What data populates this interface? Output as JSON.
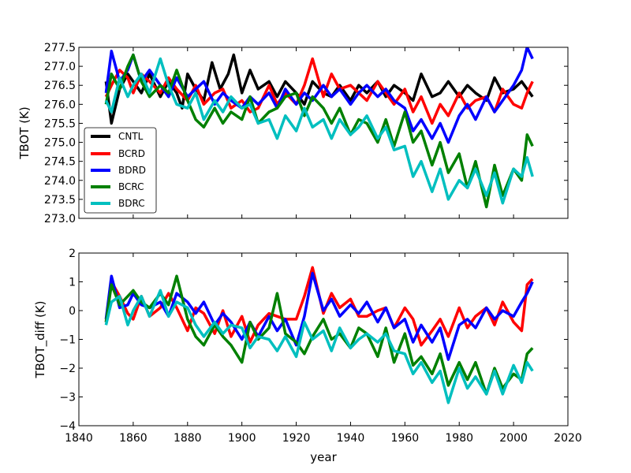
{
  "chart_data": [
    {
      "type": "line",
      "ylabel": "TBOT (K)",
      "xlabel": "",
      "xlim": [
        1840,
        2020
      ],
      "ylim": [
        273.0,
        277.5
      ],
      "xticks": [
        1840,
        1860,
        1880,
        1900,
        1920,
        1940,
        1960,
        1980,
        2000,
        2020
      ],
      "yticks": [
        273.0,
        273.5,
        274.0,
        274.5,
        275.0,
        275.5,
        276.0,
        276.5,
        277.0,
        277.5
      ],
      "ytick_labels": [
        "273.0",
        "273.5",
        "274.0",
        "274.5",
        "275.0",
        "275.5",
        "276.0",
        "276.5",
        "277.0",
        "277.5"
      ],
      "show_xtick_labels": false,
      "legend": {
        "location": "lower-left",
        "entries": [
          "CNTL",
          "BCRD",
          "BDRD",
          "BCRC",
          "BDRC"
        ]
      },
      "series": [
        {
          "name": "CNTL",
          "color": "#000000",
          "x": [
            1850,
            1852,
            1855,
            1858,
            1860,
            1863,
            1866,
            1870,
            1873,
            1876,
            1878,
            1880,
            1883,
            1886,
            1889,
            1892,
            1895,
            1897,
            1900,
            1903,
            1906,
            1910,
            1913,
            1916,
            1920,
            1923,
            1926,
            1930,
            1933,
            1936,
            1940,
            1943,
            1946,
            1950,
            1953,
            1956,
            1960,
            1963,
            1966,
            1970,
            1973,
            1976,
            1980,
            1983,
            1986,
            1990,
            1993,
            1996,
            2000,
            2003,
            2005,
            2007
          ],
          "y": [
            276.6,
            275.5,
            276.4,
            276.8,
            276.6,
            276.3,
            276.8,
            276.2,
            276.6,
            276.3,
            275.9,
            276.8,
            276.4,
            276.1,
            277.1,
            276.4,
            276.8,
            277.3,
            276.3,
            276.9,
            276.4,
            276.6,
            276.2,
            276.6,
            276.3,
            276.0,
            276.6,
            276.3,
            276.2,
            276.5,
            276.1,
            276.5,
            276.3,
            276.6,
            276.2,
            276.5,
            276.3,
            276.1,
            276.8,
            276.2,
            276.3,
            276.6,
            276.2,
            276.5,
            276.3,
            276.1,
            276.7,
            276.3,
            276.4,
            276.6,
            276.4,
            276.2
          ]
        },
        {
          "name": "BCRD",
          "color": "#ff0000",
          "x": [
            1850,
            1852,
            1855,
            1858,
            1860,
            1863,
            1866,
            1870,
            1873,
            1876,
            1880,
            1883,
            1886,
            1890,
            1893,
            1896,
            1900,
            1903,
            1906,
            1910,
            1913,
            1916,
            1920,
            1923,
            1926,
            1930,
            1933,
            1936,
            1940,
            1943,
            1946,
            1950,
            1953,
            1956,
            1960,
            1963,
            1966,
            1970,
            1973,
            1976,
            1980,
            1983,
            1986,
            1990,
            1993,
            1996,
            2000,
            2003,
            2005,
            2007
          ],
          "y": [
            276.2,
            276.5,
            276.9,
            276.7,
            276.3,
            276.8,
            276.6,
            276.3,
            276.7,
            276.4,
            276.1,
            276.5,
            276.0,
            276.3,
            276.4,
            275.9,
            276.1,
            275.8,
            275.9,
            276.5,
            276.0,
            276.3,
            276.0,
            276.5,
            277.2,
            276.2,
            276.8,
            276.4,
            276.5,
            276.3,
            276.1,
            276.6,
            276.3,
            276.0,
            276.4,
            275.8,
            276.2,
            275.5,
            276.0,
            275.7,
            276.3,
            275.9,
            276.1,
            276.2,
            275.8,
            276.4,
            276.0,
            275.9,
            276.3,
            276.6
          ]
        },
        {
          "name": "BDRD",
          "color": "#0000ff",
          "x": [
            1850,
            1852,
            1855,
            1858,
            1860,
            1863,
            1866,
            1870,
            1873,
            1876,
            1880,
            1883,
            1886,
            1890,
            1893,
            1896,
            1900,
            1903,
            1906,
            1910,
            1913,
            1916,
            1920,
            1923,
            1926,
            1930,
            1933,
            1936,
            1940,
            1943,
            1946,
            1950,
            1953,
            1956,
            1960,
            1963,
            1966,
            1970,
            1973,
            1976,
            1980,
            1983,
            1986,
            1990,
            1993,
            1996,
            2000,
            2003,
            2005,
            2007
          ],
          "y": [
            276.3,
            277.4,
            276.6,
            276.9,
            277.3,
            276.6,
            276.9,
            276.5,
            276.2,
            276.7,
            276.2,
            276.4,
            276.6,
            276.0,
            276.3,
            276.1,
            275.9,
            276.2,
            276.0,
            276.3,
            275.9,
            276.4,
            276.0,
            276.3,
            276.1,
            276.5,
            276.2,
            276.4,
            276.0,
            276.3,
            276.5,
            276.2,
            276.4,
            276.1,
            275.9,
            275.3,
            275.6,
            275.1,
            275.5,
            275.0,
            275.7,
            276.0,
            275.6,
            276.2,
            275.8,
            276.1,
            276.5,
            276.9,
            277.5,
            277.2
          ]
        },
        {
          "name": "BCRC",
          "color": "#008000",
          "x": [
            1850,
            1852,
            1855,
            1858,
            1860,
            1863,
            1866,
            1870,
            1873,
            1876,
            1880,
            1883,
            1886,
            1890,
            1893,
            1896,
            1900,
            1903,
            1906,
            1910,
            1913,
            1916,
            1920,
            1923,
            1926,
            1930,
            1933,
            1936,
            1940,
            1943,
            1946,
            1950,
            1953,
            1956,
            1960,
            1963,
            1966,
            1970,
            1973,
            1976,
            1980,
            1983,
            1986,
            1990,
            1993,
            1996,
            2000,
            2003,
            2005,
            2007
          ],
          "y": [
            276.0,
            276.8,
            276.4,
            277.0,
            277.3,
            276.6,
            276.2,
            276.5,
            276.3,
            276.9,
            276.1,
            275.6,
            275.4,
            275.9,
            275.5,
            275.8,
            275.6,
            276.2,
            275.5,
            275.8,
            275.9,
            276.2,
            276.3,
            275.7,
            276.2,
            275.9,
            275.5,
            275.9,
            275.2,
            275.6,
            275.5,
            275.0,
            275.6,
            274.9,
            275.8,
            275.0,
            275.3,
            274.4,
            275.0,
            274.2,
            274.7,
            273.8,
            274.5,
            273.3,
            274.4,
            273.6,
            274.3,
            274.0,
            275.2,
            274.9
          ]
        },
        {
          "name": "BDRC",
          "color": "#00bfbf",
          "x": [
            1850,
            1852,
            1855,
            1858,
            1860,
            1863,
            1866,
            1870,
            1873,
            1876,
            1880,
            1883,
            1886,
            1890,
            1893,
            1896,
            1900,
            1903,
            1906,
            1910,
            1913,
            1916,
            1920,
            1923,
            1926,
            1930,
            1933,
            1936,
            1940,
            1943,
            1946,
            1950,
            1953,
            1956,
            1960,
            1963,
            1966,
            1970,
            1973,
            1976,
            1980,
            1983,
            1986,
            1990,
            1993,
            1996,
            2000,
            2003,
            2005,
            2007
          ],
          "y": [
            276.1,
            275.8,
            276.7,
            276.2,
            276.5,
            276.8,
            276.3,
            277.2,
            276.5,
            276.0,
            275.9,
            276.3,
            275.6,
            276.1,
            275.8,
            276.2,
            275.9,
            276.0,
            275.5,
            275.6,
            275.1,
            275.7,
            275.3,
            275.9,
            275.4,
            275.6,
            275.1,
            275.6,
            275.2,
            275.4,
            275.7,
            275.1,
            275.4,
            274.8,
            274.9,
            274.1,
            274.5,
            273.7,
            274.3,
            273.5,
            274.0,
            273.8,
            274.3,
            273.6,
            274.2,
            273.4,
            274.3,
            274.1,
            274.6,
            274.1
          ]
        }
      ]
    },
    {
      "type": "line",
      "ylabel": "TBOT_diff (K)",
      "xlabel": "year",
      "xlim": [
        1840,
        2020
      ],
      "ylim": [
        -4,
        2
      ],
      "xticks": [
        1840,
        1860,
        1880,
        1900,
        1920,
        1940,
        1960,
        1980,
        2000,
        2020
      ],
      "xtick_labels": [
        "1840",
        "1860",
        "1880",
        "1900",
        "1920",
        "1940",
        "1960",
        "1980",
        "2000",
        "2020"
      ],
      "yticks": [
        -4,
        -3,
        -2,
        -1,
        0,
        1,
        2
      ],
      "ytick_labels": [
        "−4",
        "−3",
        "−2",
        "−1",
        "0",
        "1",
        "2"
      ],
      "show_xtick_labels": true,
      "series": [
        {
          "name": "BCRD",
          "color": "#ff0000",
          "x": [
            1850,
            1852,
            1855,
            1858,
            1860,
            1863,
            1866,
            1870,
            1873,
            1876,
            1880,
            1883,
            1886,
            1890,
            1893,
            1896,
            1900,
            1903,
            1906,
            1910,
            1913,
            1916,
            1920,
            1923,
            1926,
            1930,
            1933,
            1936,
            1940,
            1943,
            1946,
            1950,
            1953,
            1956,
            1960,
            1963,
            1966,
            1970,
            1973,
            1976,
            1980,
            1983,
            1986,
            1990,
            1993,
            1996,
            2000,
            2003,
            2005,
            2007
          ],
          "y": [
            -0.4,
            1.0,
            0.5,
            -0.1,
            -0.3,
            0.5,
            -0.2,
            0.1,
            0.6,
            0.1,
            -0.7,
            0.1,
            -0.1,
            -0.8,
            0.0,
            -0.9,
            -0.2,
            -1.1,
            -0.5,
            -0.1,
            -0.2,
            -0.3,
            -0.3,
            0.5,
            1.5,
            -0.1,
            0.6,
            0.1,
            0.4,
            -0.2,
            -0.2,
            0.0,
            0.1,
            -0.6,
            0.1,
            -0.3,
            -1.2,
            -0.7,
            -0.3,
            -0.9,
            0.1,
            -0.6,
            -0.2,
            0.1,
            -0.5,
            0.3,
            -0.4,
            -0.7,
            0.9,
            1.1
          ]
        },
        {
          "name": "BDRD",
          "color": "#0000ff",
          "x": [
            1850,
            1852,
            1855,
            1858,
            1860,
            1863,
            1866,
            1870,
            1873,
            1876,
            1880,
            1883,
            1886,
            1890,
            1893,
            1896,
            1900,
            1903,
            1906,
            1910,
            1913,
            1916,
            1920,
            1923,
            1926,
            1930,
            1933,
            1936,
            1940,
            1943,
            1946,
            1950,
            1953,
            1956,
            1960,
            1963,
            1966,
            1970,
            1973,
            1976,
            1980,
            1983,
            1986,
            1990,
            1993,
            1996,
            2000,
            2003,
            2005,
            2007
          ],
          "y": [
            -0.3,
            1.2,
            0.1,
            0.2,
            0.6,
            0.2,
            0.1,
            0.3,
            -0.2,
            0.6,
            0.3,
            -0.1,
            0.3,
            -0.5,
            -0.1,
            -0.4,
            -1.0,
            -0.4,
            -0.9,
            -0.2,
            -0.7,
            -0.3,
            -1.2,
            -0.2,
            1.3,
            0.0,
            0.4,
            -0.2,
            0.2,
            -0.1,
            0.3,
            -0.4,
            0.1,
            -0.6,
            -0.3,
            -1.1,
            -0.5,
            -1.1,
            -0.6,
            -1.7,
            -0.5,
            -0.3,
            -0.6,
            0.1,
            -0.3,
            0.0,
            -0.2,
            0.3,
            0.6,
            1.0
          ]
        },
        {
          "name": "BCRC",
          "color": "#008000",
          "x": [
            1850,
            1852,
            1855,
            1858,
            1860,
            1863,
            1866,
            1870,
            1873,
            1876,
            1880,
            1883,
            1886,
            1890,
            1893,
            1896,
            1900,
            1903,
            1906,
            1910,
            1913,
            1916,
            1920,
            1923,
            1926,
            1930,
            1933,
            1936,
            1940,
            1943,
            1946,
            1950,
            1953,
            1956,
            1960,
            1963,
            1966,
            1970,
            1973,
            1976,
            1980,
            1983,
            1986,
            1990,
            1993,
            1996,
            2000,
            2003,
            2005,
            2007
          ],
          "y": [
            -0.4,
            0.9,
            0.2,
            0.5,
            0.7,
            0.3,
            0.1,
            0.6,
            0.2,
            1.2,
            -0.3,
            -0.9,
            -1.2,
            -0.5,
            -0.9,
            -1.2,
            -1.8,
            -0.4,
            -1.0,
            -0.6,
            0.6,
            -0.8,
            -1.1,
            -1.5,
            -0.9,
            -0.3,
            -1.0,
            -0.8,
            -1.3,
            -0.6,
            -0.8,
            -1.6,
            -0.6,
            -1.8,
            -0.8,
            -1.9,
            -1.6,
            -2.2,
            -1.5,
            -2.6,
            -1.8,
            -2.4,
            -1.8,
            -2.9,
            -2.0,
            -2.7,
            -2.2,
            -2.4,
            -1.5,
            -1.3
          ]
        },
        {
          "name": "BDRC",
          "color": "#00bfbf",
          "x": [
            1850,
            1852,
            1855,
            1858,
            1860,
            1863,
            1866,
            1870,
            1873,
            1876,
            1880,
            1883,
            1886,
            1890,
            1893,
            1896,
            1900,
            1903,
            1906,
            1910,
            1913,
            1916,
            1920,
            1923,
            1926,
            1930,
            1933,
            1936,
            1940,
            1943,
            1946,
            1950,
            1953,
            1956,
            1960,
            1963,
            1966,
            1970,
            1973,
            1976,
            1980,
            1983,
            1986,
            1990,
            1993,
            1996,
            2000,
            2003,
            2005,
            2007
          ],
          "y": [
            -0.5,
            0.3,
            0.5,
            -0.5,
            0.0,
            0.5,
            -0.2,
            0.7,
            -0.2,
            0.3,
            0.1,
            -0.5,
            -0.9,
            -0.4,
            -0.8,
            -0.5,
            -0.6,
            -1.3,
            -0.9,
            -1.0,
            -1.4,
            -0.9,
            -1.6,
            -0.4,
            -1.0,
            -0.7,
            -1.4,
            -0.6,
            -1.3,
            -1.0,
            -0.8,
            -1.1,
            -0.8,
            -1.4,
            -1.5,
            -2.2,
            -1.8,
            -2.5,
            -2.1,
            -3.2,
            -2.0,
            -2.7,
            -2.3,
            -2.9,
            -2.1,
            -2.9,
            -1.9,
            -2.5,
            -1.8,
            -2.1
          ]
        }
      ]
    }
  ]
}
